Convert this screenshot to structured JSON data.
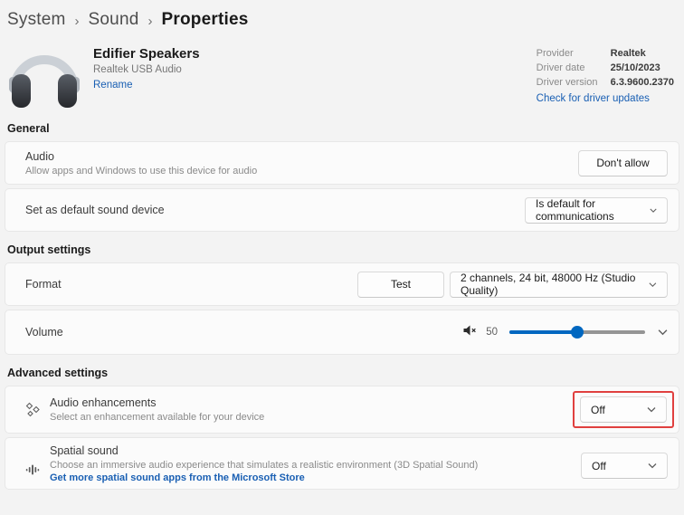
{
  "colors": {
    "accent": "#005fb8",
    "link": "#195fb3",
    "highlight_red": "#e0403f",
    "page_bg": "#f3f3f3",
    "card_bg": "#fbfbfb"
  },
  "breadcrumb": {
    "items": [
      "System",
      "Sound",
      "Properties"
    ],
    "separator": "›"
  },
  "device": {
    "name": "Edifier Speakers",
    "subtitle": "Realtek USB Audio",
    "rename_label": "Rename",
    "icon": "headphones-icon"
  },
  "driver": {
    "rows": [
      {
        "label": "Provider",
        "value": "Realtek"
      },
      {
        "label": "Driver date",
        "value": "25/10/2023"
      },
      {
        "label": "Driver version",
        "value": "6.3.9600.2370"
      }
    ],
    "update_link": "Check for driver updates"
  },
  "sections": {
    "general": {
      "title": "General",
      "audio": {
        "title": "Audio",
        "description": "Allow apps and Windows to use this device for audio",
        "button_label": "Don't allow"
      },
      "default_device": {
        "title": "Set as default sound device",
        "dropdown_value": "Is default for communications"
      }
    },
    "output": {
      "title": "Output settings",
      "format": {
        "title": "Format",
        "test_button_label": "Test",
        "dropdown_value": "2 channels, 24 bit, 48000 Hz (Studio Quality)"
      },
      "volume": {
        "title": "Volume",
        "value": "50",
        "percent": 50,
        "mute_icon": "speaker-mute-icon"
      }
    },
    "advanced": {
      "title": "Advanced settings",
      "enhancements": {
        "title": "Audio enhancements",
        "description": "Select an enhancement available for your device",
        "dropdown_value": "Off",
        "highlighted": true,
        "icon": "sparkle-diamonds-icon"
      },
      "spatial": {
        "title": "Spatial sound",
        "description": "Choose an immersive audio experience that simulates a realistic environment (3D Spatial Sound)",
        "link": "Get more spatial sound apps from the Microsoft Store",
        "dropdown_value": "Off",
        "icon": "spatial-sound-icon"
      }
    }
  }
}
